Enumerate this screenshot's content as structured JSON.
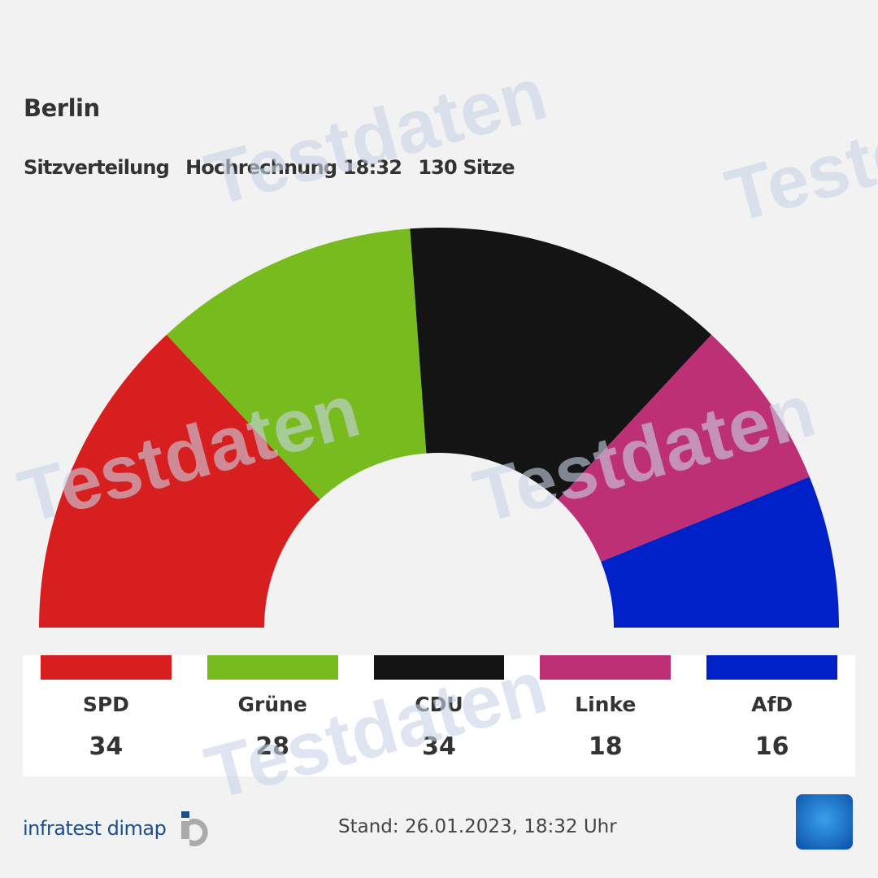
{
  "header": {
    "title": "Berlin",
    "subtitle_parts": [
      "Sitzverteilung",
      "Hochrechnung 18:32",
      "130 Sitze"
    ]
  },
  "chart_data": {
    "type": "pie",
    "variant": "hemicycle",
    "total_seats": 130,
    "categories": [
      "SPD",
      "Grüne",
      "CDU",
      "Linke",
      "AfD"
    ],
    "values": [
      34,
      28,
      34,
      18,
      16
    ],
    "colors": [
      "#d71f1f",
      "#78bb1e",
      "#141414",
      "#be3075",
      "#0021c8"
    ]
  },
  "watermark": "Testdaten",
  "footer": {
    "brand": "infratest dimap",
    "stand": "Stand: 26.01.2023, 18:32 Uhr"
  }
}
